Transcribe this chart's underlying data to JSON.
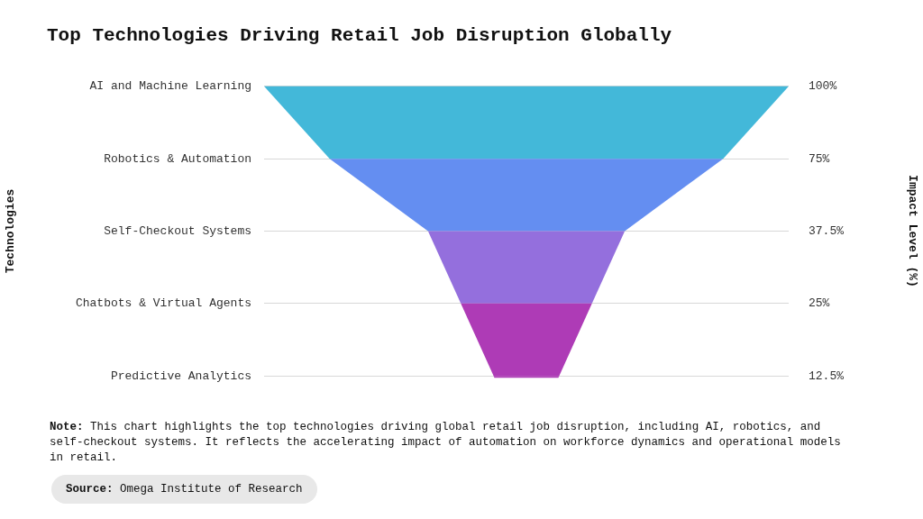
{
  "chart_data": {
    "type": "other",
    "title": "Top Technologies Driving Retail Job Disruption Globally",
    "ylabel": "Technologies",
    "y2label": "Impact Level (%)",
    "categories": [
      "AI and Machine Learning",
      "Robotics & Automation",
      "Self-Checkout Systems",
      "Chatbots & Virtual Agents",
      "Predictive Analytics"
    ],
    "values": [
      100,
      75,
      37.5,
      25,
      12.5
    ],
    "value_labels": [
      "100%",
      "75%",
      "37.5%",
      "25%",
      "12.5%"
    ],
    "colors": [
      "#43b8d9",
      "#648ef1",
      "#946fdd",
      "#ae3bb6",
      "#ae3bb6"
    ],
    "annotations": [
      "Note: This chart highlights the top technologies driving global retail job disruption, including AI, robotics, and self-checkout systems. It reflects the accelerating impact of automation on workforce dynamics and operational models in retail.",
      "Source: Omega Institute of Research"
    ]
  }
}
